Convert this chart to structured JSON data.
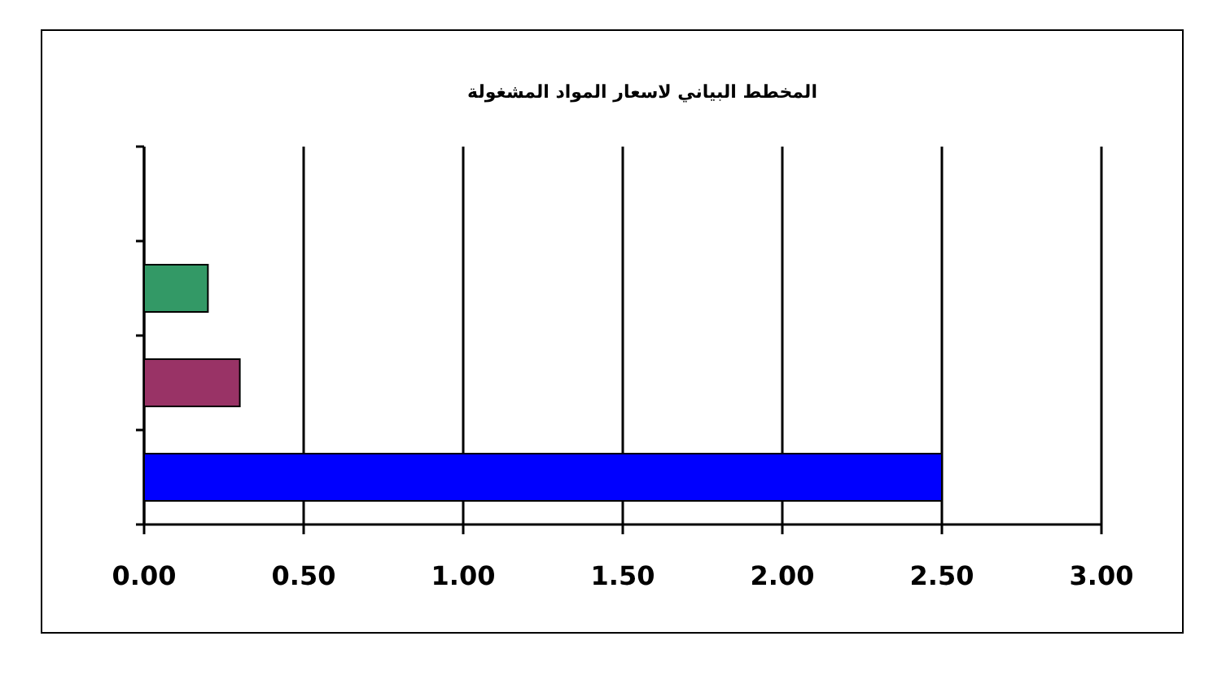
{
  "chart_data": {
    "type": "bar",
    "orientation": "horizontal",
    "title": "المخطط البياني لاسعار المواد المشغولة",
    "categories": [
      null,
      null,
      null,
      null
    ],
    "values": [
      null,
      0.2,
      0.3,
      2.5
    ],
    "colors": [
      null,
      "#339966",
      "#993366",
      "#0000ff"
    ],
    "xlim": [
      0,
      3
    ],
    "xticks": [
      {
        "value": 0,
        "label": "0.00"
      },
      {
        "value": 0.5,
        "label": "0.50"
      },
      {
        "value": 1,
        "label": "1.00"
      },
      {
        "value": 1.5,
        "label": "1.50"
      },
      {
        "value": 2,
        "label": "2.00"
      },
      {
        "value": 2.5,
        "label": "2.50"
      },
      {
        "value": 3,
        "label": "3.00"
      }
    ],
    "grid": "x"
  }
}
